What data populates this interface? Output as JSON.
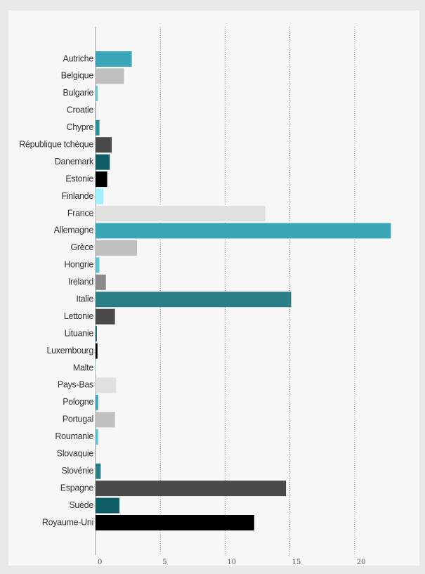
{
  "chart_data": {
    "type": "bar",
    "orientation": "horizontal",
    "categories": [
      "Autriche",
      "Belgique",
      "Bulgarie",
      "Croatie",
      "Chypre",
      "République tchèque",
      "Danemark",
      "Estonie",
      "Finlande",
      "France",
      "Allemagne",
      "Grèce",
      "Hongrie",
      "Ireland",
      "Italie",
      "Lettonie",
      "Lituanie",
      "Luxembourg",
      "Malte",
      "Pays-Bas",
      "Pologne",
      "Portugal",
      "Roumanie",
      "Slovaquie",
      "Slovénie",
      "Espagne",
      "Suède",
      "Royaume-Uni"
    ],
    "values": [
      2.8,
      2.2,
      0.15,
      0.05,
      0.3,
      1.25,
      1.1,
      0.9,
      0.6,
      13.1,
      22.8,
      3.2,
      0.3,
      0.8,
      15.1,
      1.5,
      0.1,
      0.15,
      0.02,
      1.6,
      0.2,
      1.5,
      0.2,
      0.03,
      0.4,
      14.7,
      1.85,
      12.25
    ],
    "colors": [
      "#3aa6b9",
      "#c0c0c0",
      "#5cc4d4",
      "#a0a0a0",
      "#2a8f9a",
      "#4a4a4a",
      "#0d5c66",
      "#000000",
      "#9ef0ff",
      "#e0e0e0",
      "#39a7b8",
      "#c0c0c0",
      "#5cc4d4",
      "#8a8a8a",
      "#2a7f87",
      "#4a4a4a",
      "#0d5c66",
      "#000000",
      "#9ef0ff",
      "#e0e0e0",
      "#3aa6b9",
      "#c0c0c0",
      "#5cc4d4",
      "#8a8a8a",
      "#2a7f87",
      "#4a4a4a",
      "#0d5c66",
      "#000000"
    ],
    "xlim": [
      0,
      25
    ],
    "xticks": [
      0,
      5,
      10,
      15,
      20
    ],
    "grid": true
  }
}
